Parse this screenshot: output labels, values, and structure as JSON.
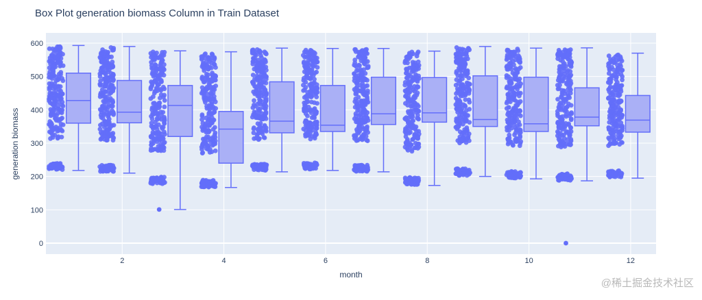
{
  "chart_data": {
    "type": "box",
    "title": "Box Plot generation biomass Column in Train Dataset",
    "xlabel": "month",
    "ylabel": "generation biomass",
    "ylim": [
      -30,
      610
    ],
    "xlim": [
      0.5,
      12.5
    ],
    "yticks": [
      0,
      100,
      200,
      300,
      400,
      500,
      600
    ],
    "xticks": [
      2,
      4,
      6,
      8,
      10,
      12
    ],
    "box_color": "#636efa",
    "plot_bg": "#e5ecf6",
    "series": [
      {
        "month": 1,
        "min": 218,
        "q1": 360,
        "median": 428,
        "q3": 510,
        "max": 593,
        "outlier_band": [
          220,
          590
        ]
      },
      {
        "month": 2,
        "min": 210,
        "q1": 361,
        "median": 393,
        "q3": 488,
        "max": 590,
        "outlier_band": [
          215,
          588
        ]
      },
      {
        "month": 3,
        "min": 101,
        "q1": 320,
        "median": 413,
        "q3": 473,
        "max": 577,
        "outlier_band": [
          178,
          574
        ],
        "extra_points": [
          101
        ]
      },
      {
        "month": 4,
        "min": 167,
        "q1": 240,
        "median": 342,
        "q3": 395,
        "max": 574,
        "outlier_band": [
          168,
          572
        ]
      },
      {
        "month": 5,
        "min": 214,
        "q1": 331,
        "median": 366,
        "q3": 484,
        "max": 585,
        "outlier_band": [
          218,
          582
        ]
      },
      {
        "month": 6,
        "min": 218,
        "q1": 335,
        "median": 354,
        "q3": 473,
        "max": 584,
        "outlier_band": [
          222,
          580
        ]
      },
      {
        "month": 7,
        "min": 214,
        "q1": 356,
        "median": 388,
        "q3": 498,
        "max": 584,
        "outlier_band": [
          215,
          582
        ]
      },
      {
        "month": 8,
        "min": 173,
        "q1": 363,
        "median": 391,
        "q3": 497,
        "max": 576,
        "outlier_band": [
          176,
          574
        ]
      },
      {
        "month": 9,
        "min": 200,
        "q1": 350,
        "median": 371,
        "q3": 502,
        "max": 590,
        "outlier_band": [
          203,
          588
        ]
      },
      {
        "month": 10,
        "min": 193,
        "q1": 335,
        "median": 358,
        "q3": 498,
        "max": 585,
        "outlier_band": [
          195,
          583
        ]
      },
      {
        "month": 11,
        "min": 187,
        "q1": 352,
        "median": 378,
        "q3": 466,
        "max": 586,
        "outlier_band": [
          188,
          585
        ],
        "extra_points": [
          0
        ]
      },
      {
        "month": 12,
        "min": 195,
        "q1": 333,
        "median": 369,
        "q3": 443,
        "max": 570,
        "outlier_band": [
          198,
          568
        ]
      }
    ]
  },
  "watermark": "@稀土掘金技术社区"
}
